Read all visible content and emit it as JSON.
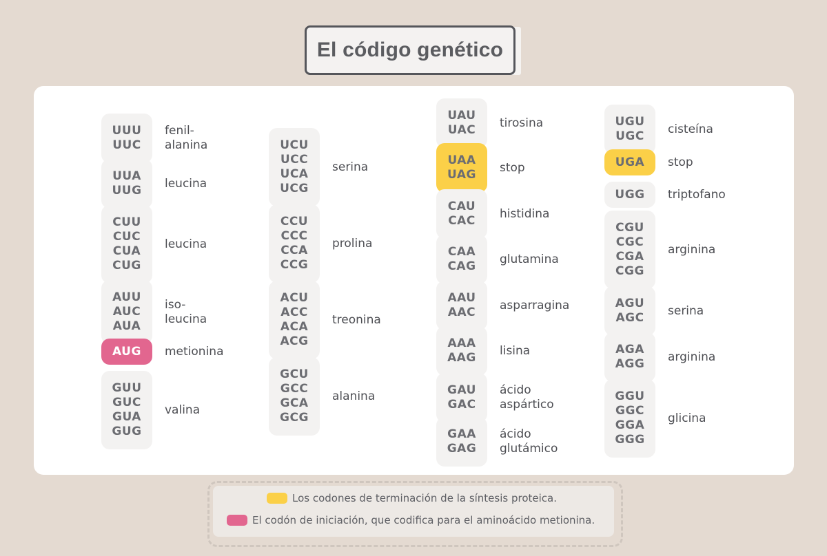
{
  "title": "El código genético",
  "colors": {
    "stop": "#fbd048",
    "start": "#e2668f",
    "codon_bg": "#f3f2f1"
  },
  "columns": [
    {
      "entries": [
        {
          "codons": [
            "UUU",
            "UUC"
          ],
          "amino": [
            "fenil-",
            "alanina"
          ]
        },
        {
          "codons": [
            "UUA",
            "UUG"
          ],
          "amino": [
            "leucina"
          ]
        },
        {
          "codons": [
            "CUU",
            "CUC",
            "CUA",
            "CUG"
          ],
          "amino": [
            "leucina"
          ]
        },
        {
          "codons": [
            "AUU",
            "AUC",
            "AUA"
          ],
          "amino": [
            "iso-",
            "leucina"
          ]
        },
        {
          "codons": [
            "AUG"
          ],
          "amino": [
            "metionina"
          ],
          "kind": "start"
        },
        {
          "codons": [
            "GUU",
            "GUC",
            "GUA",
            "GUG"
          ],
          "amino": [
            "valina"
          ]
        }
      ]
    },
    {
      "entries": [
        {
          "codons": [
            "UCU",
            "UCC",
            "UCA",
            "UCG"
          ],
          "amino": [
            "serina"
          ]
        },
        {
          "codons": [
            "CCU",
            "CCC",
            "CCA",
            "CCG"
          ],
          "amino": [
            "prolina"
          ]
        },
        {
          "codons": [
            "ACU",
            "ACC",
            "ACA",
            "ACG"
          ],
          "amino": [
            "treonina"
          ]
        },
        {
          "codons": [
            "GCU",
            "GCC",
            "GCA",
            "GCG"
          ],
          "amino": [
            "alanina"
          ]
        }
      ]
    },
    {
      "entries": [
        {
          "codons": [
            "UAU",
            "UAC"
          ],
          "amino": [
            "tirosina"
          ]
        },
        {
          "codons": [
            "UAA",
            "UAG"
          ],
          "amino": [
            "stop"
          ],
          "kind": "stop"
        },
        {
          "codons": [
            "CAU",
            "CAC"
          ],
          "amino": [
            "histidina"
          ]
        },
        {
          "codons": [
            "CAA",
            "CAG"
          ],
          "amino": [
            "glutamina"
          ]
        },
        {
          "codons": [
            "AAU",
            "AAC"
          ],
          "amino": [
            "asparragina"
          ]
        },
        {
          "codons": [
            "AAA",
            "AAG"
          ],
          "amino": [
            "lisina"
          ]
        },
        {
          "codons": [
            "GAU",
            "GAC"
          ],
          "amino": [
            "ácido",
            "aspártico"
          ]
        },
        {
          "codons": [
            "GAA",
            "GAG"
          ],
          "amino": [
            "ácido",
            "glutámico"
          ]
        }
      ]
    },
    {
      "entries": [
        {
          "codons": [
            "UGU",
            "UGC"
          ],
          "amino": [
            "cisteína"
          ]
        },
        {
          "codons": [
            "UGA"
          ],
          "amino": [
            "stop"
          ],
          "kind": "stop"
        },
        {
          "codons": [
            "UGG"
          ],
          "amino": [
            "triptofano"
          ]
        },
        {
          "codons": [
            "CGU",
            "CGC",
            "CGA",
            "CGG"
          ],
          "amino": [
            "arginina"
          ]
        },
        {
          "codons": [
            "AGU",
            "AGC"
          ],
          "amino": [
            "serina"
          ]
        },
        {
          "codons": [
            "AGA",
            "AGG"
          ],
          "amino": [
            "arginina"
          ]
        },
        {
          "codons": [
            "GGU",
            "GGC",
            "GGA",
            "GGG"
          ],
          "amino": [
            "glicina"
          ]
        }
      ]
    }
  ],
  "legend": {
    "stop_text": "Los codones de terminación de la síntesis proteica.",
    "start_text": "El codón de iniciación, que codifica para el aminoácido metionina."
  }
}
